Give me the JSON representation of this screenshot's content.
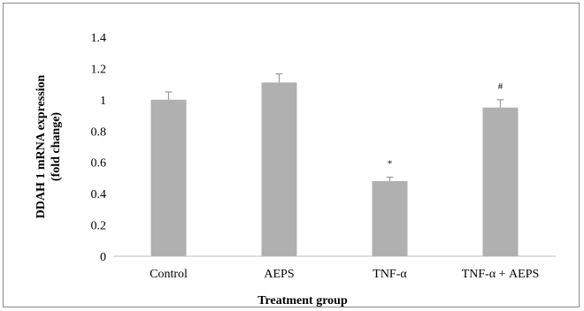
{
  "chart_data": {
    "type": "bar",
    "categories": [
      "Control",
      "AEPS",
      "TNF-α",
      "TNF-α + AEPS"
    ],
    "values": [
      1.0,
      1.11,
      0.48,
      0.95
    ],
    "errors": [
      0.05,
      0.055,
      0.025,
      0.05
    ],
    "annotations": [
      "",
      "",
      "*",
      "#"
    ],
    "title": "",
    "xlabel": "Treatment group",
    "ylabel": [
      "DDAH 1 mRNA expression",
      "(fold change)"
    ],
    "ylim": [
      0,
      1.4
    ],
    "yticks": [
      "0",
      "0.2",
      "0.4",
      "0.6",
      "0.8",
      "1",
      "1.2",
      "1.4"
    ],
    "grid": false,
    "legend": "none",
    "bar_color": "#b0b0b0"
  }
}
